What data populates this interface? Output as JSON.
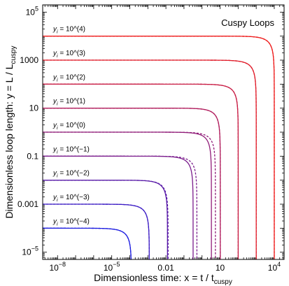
{
  "chart_data": {
    "type": "line",
    "title": "Cuspy Loops",
    "xlabel": "Dimensionless time:  x = t / t",
    "xlabel_sub": "cuspy",
    "ylabel": "Dimensionless loop length:  y = L / L",
    "ylabel_sub": "cuspy",
    "xscale": "log",
    "yscale": "log",
    "xlim": [
      1.5e-09,
      35000.0
    ],
    "ylim": [
      5e-06,
      200000.0
    ],
    "x_ticks": [
      {
        "value": 1e-08,
        "base": "10",
        "exp": "−8"
      },
      {
        "value": 1e-05,
        "base": "10",
        "exp": "−5"
      },
      {
        "value": 0.01,
        "label": "0.01"
      },
      {
        "value": 10,
        "label": "10"
      },
      {
        "value": 10000,
        "base": "10",
        "exp": "4"
      }
    ],
    "y_ticks": [
      {
        "value": 1e-05,
        "base": "10",
        "exp": "−5"
      },
      {
        "value": 0.001,
        "label": "0.001"
      },
      {
        "value": 0.1,
        "label": "0.1"
      },
      {
        "value": 10,
        "label": "10"
      },
      {
        "value": 1000,
        "label": "1000"
      },
      {
        "value": 100000,
        "base": "10",
        "exp": "5"
      }
    ],
    "grid": false,
    "series": [
      {
        "name": "y_i = 10^(4)",
        "label_base": "y",
        "label_sub": "i",
        "label_rest": " = 10^(4)",
        "y0": 10000,
        "color": "#ee1c1c",
        "solid_end": 10002,
        "dashed_end": 10002
      },
      {
        "name": "y_i = 10^(3)",
        "label_base": "y",
        "label_sub": "i",
        "label_rest": " = 10^(3)",
        "y0": 1000,
        "color": "#e01c2a",
        "solid_end": 1002,
        "dashed_end": 1002
      },
      {
        "name": "y_i = 10^(2)",
        "label_base": "y",
        "label_sub": "i",
        "label_rest": " = 10^(2)",
        "y0": 100,
        "color": "#c81c44",
        "solid_end": 100.5,
        "dashed_end": 100.5
      },
      {
        "name": "y_i = 10^(1)",
        "label_base": "y",
        "label_sub": "i",
        "label_rest": " = 10^(1)",
        "y0": 10,
        "color": "#b01c5c",
        "solid_end": 10.2,
        "dashed_end": 10.2
      },
      {
        "name": "y_i = 10^(0)",
        "label_base": "y",
        "label_sub": "i",
        "label_rest": " = 10^(0)",
        "y0": 1,
        "color": "#901c78",
        "solid_end": 3.3,
        "dashed_end": 5.5
      },
      {
        "name": "y_i = 10^(−1)",
        "label_base": "y",
        "label_sub": "i",
        "label_rest": " = 10^(−1)",
        "y0": 0.1,
        "color": "#7a1c8c",
        "solid_end": 0.32,
        "dashed_end": 0.52
      },
      {
        "name": "y_i = 10^(−2)",
        "label_base": "y",
        "label_sub": "i",
        "label_rest": " = 10^(−2)",
        "y0": 0.01,
        "color": "#5a1ca8",
        "solid_end": 0.0122,
        "dashed_end": 0.0132
      },
      {
        "name": "y_i = 10^(−3)",
        "label_base": "y",
        "label_sub": "i",
        "label_rest": " = 10^(−3)",
        "y0": 0.001,
        "color": "#3c1cc4",
        "solid_end": 0.0012,
        "dashed_end": 0.0012
      },
      {
        "name": "y_i = 10^(−4)",
        "label_base": "y",
        "label_sub": "i",
        "label_rest": " = 10^(−4)",
        "y0": 0.0001,
        "color": "#1c1ce0",
        "solid_end": 0.000122,
        "dashed_end": 0.000122
      }
    ]
  }
}
